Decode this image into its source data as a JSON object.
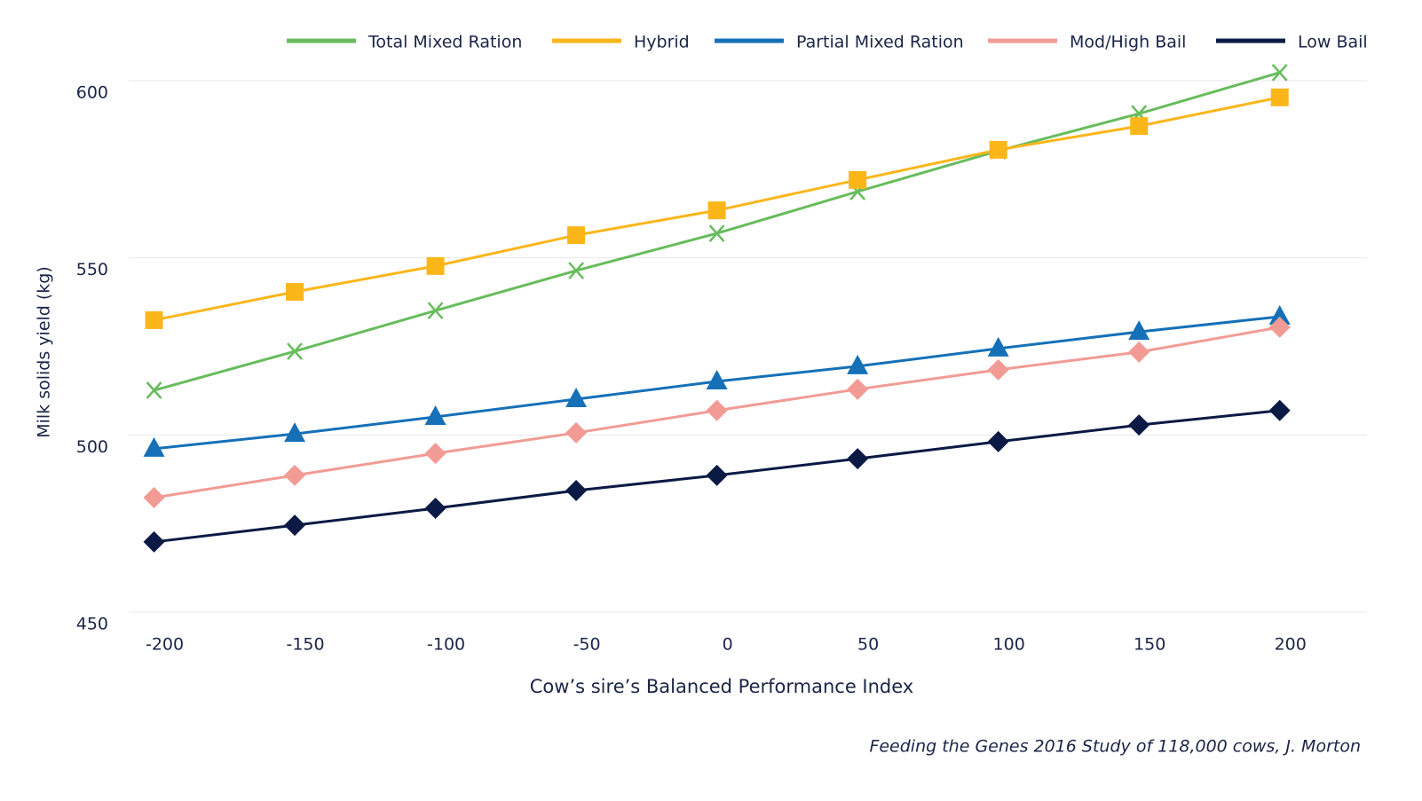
{
  "chart_data": {
    "type": "line",
    "x_label": "Cow’s sire’s Balanced Performance Index",
    "y_label": "Milk solids yield (kg)",
    "source": "Feeding the Genes 2016 Study of 118,000 cows, J. Morton",
    "x": [
      -200,
      -150,
      -100,
      -50,
      0,
      50,
      100,
      150,
      200
    ],
    "xlim": [
      -209,
      231
    ],
    "xticks": [
      -200,
      -150,
      -100,
      -50,
      0,
      50,
      100,
      150,
      200
    ],
    "ylim": [
      450,
      600
    ],
    "yticks": [
      450,
      500,
      550,
      600
    ],
    "grid": true,
    "legend": "top",
    "series": [
      {
        "name": "Total Mixed Ration",
        "color": "#68bc5d",
        "marker": "x",
        "values": [
          512.6,
          523.6,
          535.1,
          546.4,
          556.9,
          568.7,
          580.2,
          590.7,
          602.3
        ]
      },
      {
        "name": "Hybrid",
        "color": "#fbb61a",
        "marker": "square",
        "values": [
          532.4,
          540.4,
          547.7,
          556.4,
          563.4,
          572.0,
          580.5,
          587.2,
          595.3
        ]
      },
      {
        "name": "Partial Mixed Ration",
        "color": "#1570b8",
        "marker": "triangle",
        "values": [
          496.1,
          500.3,
          505.1,
          510.1,
          515.1,
          519.4,
          524.4,
          529.1,
          533.4
        ]
      },
      {
        "name": "Mod/High Bail",
        "color": "#f29b95",
        "marker": "diamond",
        "values": [
          482.3,
          488.6,
          494.8,
          500.6,
          506.9,
          512.9,
          518.4,
          523.4,
          530.4
        ]
      },
      {
        "name": "Low Bail",
        "color": "#0b1a45",
        "marker": "diamond",
        "values": [
          469.8,
          474.5,
          479.3,
          484.3,
          488.6,
          493.3,
          498.1,
          502.8,
          506.9
        ]
      }
    ]
  }
}
